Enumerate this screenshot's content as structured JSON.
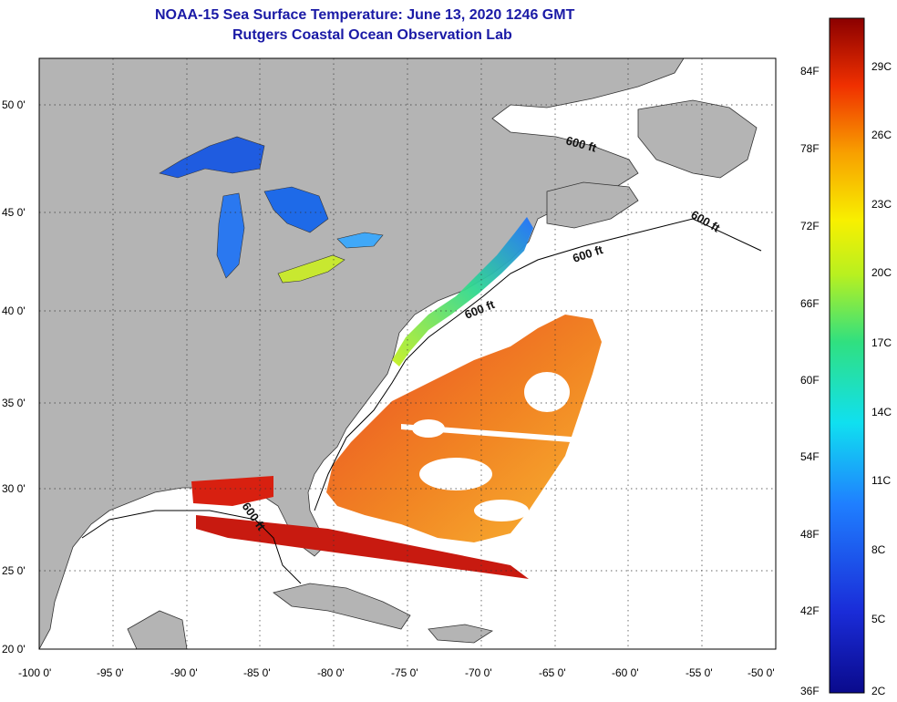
{
  "title_line1": "NOAA-15 Sea Surface Temperature:  June 13, 2020 1246 GMT",
  "title_line2": "Rutgers Coastal Ocean Observation Lab",
  "lat_ticks": [
    "50 0'",
    "45 0'",
    "40 0'",
    "35 0'",
    "30 0'",
    "25 0'",
    "20 0'"
  ],
  "lon_ticks": [
    "-100 0'",
    "-95 0'",
    "-90 0'",
    "-85 0'",
    "-80 0'",
    "-75 0'",
    "-70 0'",
    "-65 0'",
    "-60 0'",
    "-55 0'",
    "-50 0'"
  ],
  "contour_label": "600 ft",
  "colorbar_f": [
    "84F",
    "78F",
    "72F",
    "66F",
    "60F",
    "54F",
    "48F",
    "42F",
    "36F"
  ],
  "colorbar_c": [
    "29C",
    "26C",
    "23C",
    "20C",
    "17C",
    "14C",
    "11C",
    "8C",
    "5C",
    "2C"
  ],
  "colors": {
    "land": "#b4b4b4",
    "title": "#1a1aa6",
    "cold": "#0a0a8c",
    "warm": "#8b0000"
  }
}
